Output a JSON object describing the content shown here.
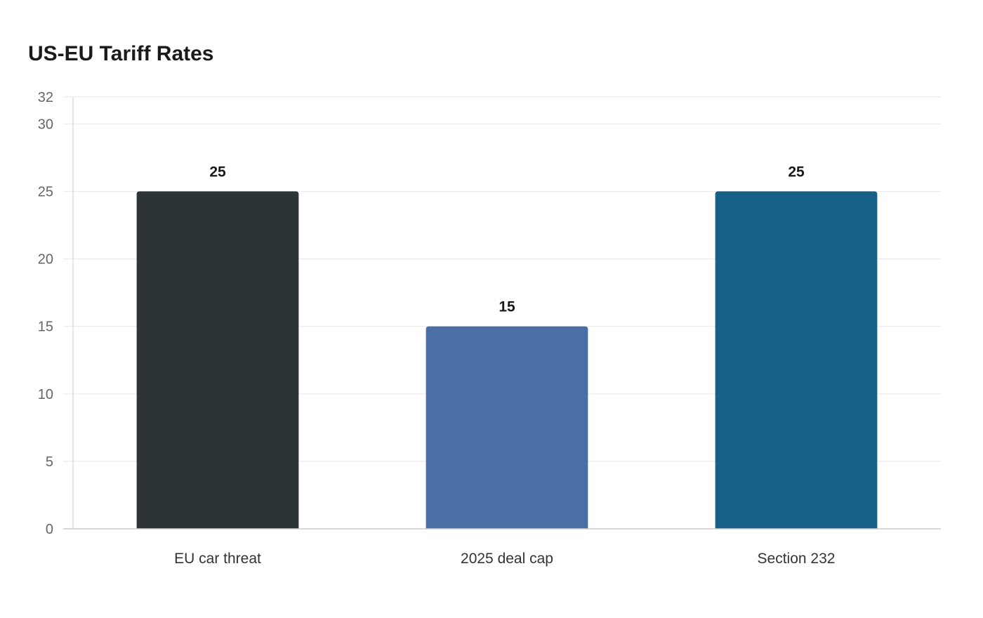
{
  "chart_data": {
    "type": "bar",
    "title": "US-EU Tariff Rates",
    "categories": [
      "EU car threat",
      "2025 deal cap",
      "Section 232"
    ],
    "values": [
      25,
      15,
      25
    ],
    "colors": [
      "#2d3436",
      "#4a6fa5",
      "#176087"
    ],
    "yticks": [
      0,
      5,
      10,
      15,
      20,
      25,
      30,
      32
    ],
    "ylim": [
      0,
      32
    ],
    "grid": true,
    "legend": "none",
    "data_labels": true
  }
}
